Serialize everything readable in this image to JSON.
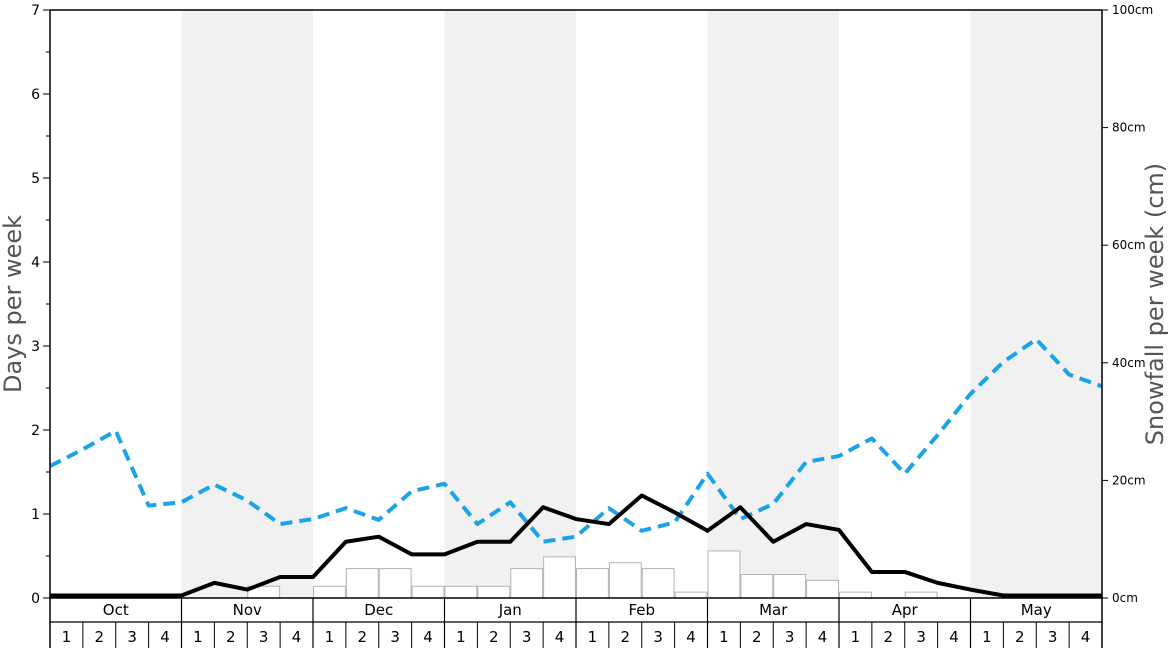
{
  "chart_data": {
    "type": "bar",
    "title": "",
    "y_left": {
      "label": "Days per week",
      "range": [
        0,
        7
      ],
      "ticks": [
        "0",
        "1",
        "2",
        "3",
        "4",
        "5",
        "6",
        "7"
      ]
    },
    "y_right": {
      "label": "Snowfall per week (cm)",
      "range": [
        0,
        100
      ],
      "ticks": [
        "0cm",
        "20cm",
        "40cm",
        "60cm",
        "80cm",
        "100cm"
      ]
    },
    "months": [
      "Oct",
      "Nov",
      "Dec",
      "Jan",
      "Feb",
      "Mar",
      "Apr",
      "May"
    ],
    "weeks": [
      "1",
      "2",
      "3",
      "4"
    ],
    "grid": false,
    "shaded_months": [
      "Nov",
      "Jan",
      "Mar",
      "May"
    ],
    "series": [
      {
        "kind": "bar",
        "axis": "right",
        "values": [
          0,
          0,
          0,
          0,
          0,
          0,
          2,
          0,
          2,
          5,
          5,
          2,
          2,
          2,
          5,
          7,
          5,
          6,
          5,
          1,
          8,
          4,
          4,
          3,
          1,
          0,
          1,
          0,
          0,
          0,
          0,
          0
        ],
        "color": "#ffffff",
        "stroke": "#b3b3b3"
      },
      {
        "kind": "line",
        "axis": "left",
        "style": "dashed",
        "color": "#1aa3e8",
        "values": [
          1.57,
          1.77,
          1.99,
          1.1,
          1.14,
          1.35,
          1.16,
          0.88,
          0.94,
          1.07,
          0.93,
          1.27,
          1.36,
          0.88,
          1.14,
          0.67,
          0.73,
          1.07,
          0.8,
          0.9,
          1.48,
          0.94,
          1.12,
          1.62,
          1.69,
          1.9,
          1.48,
          1.94,
          2.43,
          2.81,
          3.08,
          2.66,
          2.52
        ]
      },
      {
        "kind": "line",
        "axis": "left",
        "style": "solid",
        "color": "#000000",
        "values": [
          0.03,
          0.03,
          0.03,
          0.03,
          0.03,
          0.18,
          0.1,
          0.25,
          0.25,
          0.67,
          0.73,
          0.52,
          0.52,
          0.67,
          0.67,
          1.08,
          0.94,
          0.88,
          1.22,
          1.02,
          0.8,
          1.08,
          0.67,
          0.88,
          0.81,
          0.31,
          0.31,
          0.18,
          0.1,
          0.03,
          0.03,
          0.03,
          0.03
        ]
      }
    ]
  }
}
